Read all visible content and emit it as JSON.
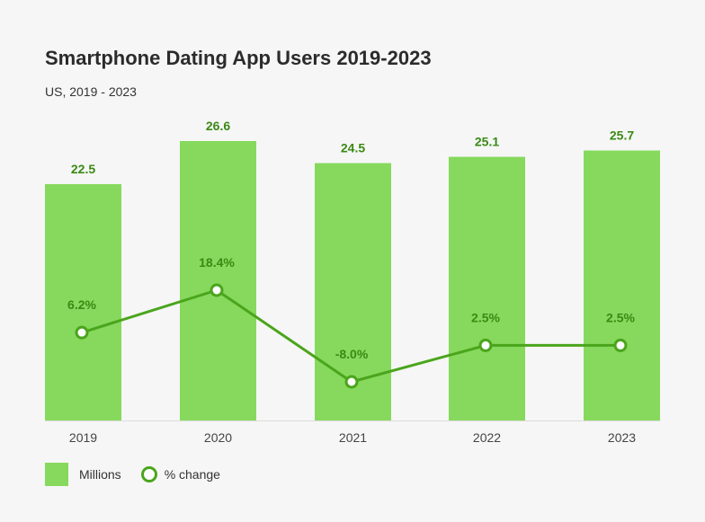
{
  "colors": {
    "bar": "#86d95c",
    "line": "#4aa51c",
    "label": "#3a8a14",
    "background": "#f6f6f6"
  },
  "chart_data": {
    "type": "bar",
    "title": "Smartphone Dating App Users 2019-2023",
    "subtitle": "US, 2019 - 2023",
    "categories": [
      "2019",
      "2020",
      "2021",
      "2022",
      "2023"
    ],
    "series": [
      {
        "name": "Millions",
        "type": "bar",
        "values": [
          22.5,
          26.6,
          24.5,
          25.1,
          25.7
        ],
        "labels": [
          "22.5",
          "26.6",
          "24.5",
          "25.1",
          "25.7"
        ]
      },
      {
        "name": "% change",
        "type": "line",
        "values": [
          6.2,
          18.4,
          -8.0,
          2.5,
          2.5
        ],
        "labels": [
          "6.2%",
          "18.4%",
          "-8.0%",
          "2.5%",
          "2.5%"
        ]
      }
    ],
    "legend_position": "bottom-left",
    "grid": false
  }
}
